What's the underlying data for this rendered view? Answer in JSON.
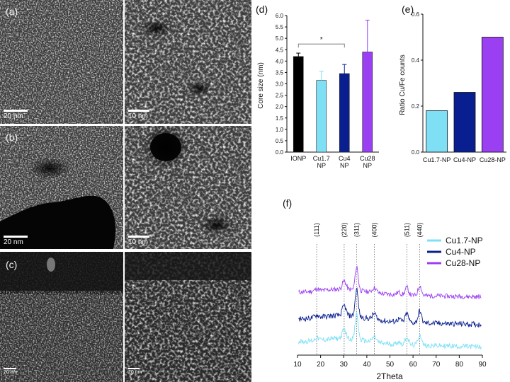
{
  "micrographs": {
    "panels": [
      {
        "row_label": "(a)",
        "scale_left": "20 nm",
        "scale_right": "10 nm"
      },
      {
        "row_label": "(b)",
        "scale_left": "20 nm",
        "scale_right": "10 nm"
      },
      {
        "row_label": "(c)",
        "scale_left": "20 nm",
        "scale_right": "10 nm"
      }
    ]
  },
  "colors": {
    "IONP": "#000000",
    "Cu1.7": "#7fe0f5",
    "Cu4": "#0a1f8f",
    "Cu28": "#9b3ff2"
  },
  "chart_data": [
    {
      "panel_label": "(d)",
      "type": "bar",
      "categories": [
        "IONP",
        "Cu1.7 NP",
        "Cu4 NP",
        "Cu28 NP"
      ],
      "values": [
        4.2,
        3.15,
        3.45,
        4.4
      ],
      "errors": [
        0.15,
        0.4,
        0.4,
        1.4
      ],
      "ylabel": "Core size (nm)",
      "ylim": [
        0,
        6
      ],
      "yticks": [
        "0.0",
        "0.5",
        "1.0",
        "1.5",
        "2.0",
        "2.5",
        "3.0",
        "3.5",
        "4.0",
        "4.5",
        "5.0",
        "5.5",
        "6.0"
      ],
      "significance": {
        "between": [
          "IONP",
          "Cu4 NP"
        ],
        "label": "*"
      }
    },
    {
      "panel_label": "(e)",
      "type": "bar",
      "categories": [
        "Cu1.7-NP",
        "Cu4-NP",
        "Cu28-NP"
      ],
      "values": [
        0.18,
        0.26,
        0.5
      ],
      "ylabel": "Ratio Cu/Fe counts",
      "ylim": [
        0,
        0.6
      ],
      "yticks": [
        "0.0",
        "0.2",
        "0.4",
        "0.6"
      ]
    },
    {
      "panel_label": "(f)",
      "type": "line",
      "xlabel": "2Theta",
      "xlim": [
        10,
        90
      ],
      "xticks": [
        "10",
        "20",
        "30",
        "40",
        "50",
        "60",
        "70",
        "80",
        "90"
      ],
      "reference_lines": [
        {
          "x": 18.3,
          "label": "(111)"
        },
        {
          "x": 30.2,
          "label": "(220)"
        },
        {
          "x": 35.6,
          "label": "(311)"
        },
        {
          "x": 43.3,
          "label": "(400)"
        },
        {
          "x": 57.3,
          "label": "(511)"
        },
        {
          "x": 62.9,
          "label": "(440)"
        }
      ],
      "series": [
        {
          "name": "Cu1.7-NP"
        },
        {
          "name": "Cu4-NP"
        },
        {
          "name": "Cu28-NP"
        }
      ],
      "legend_position": "top-right"
    }
  ]
}
